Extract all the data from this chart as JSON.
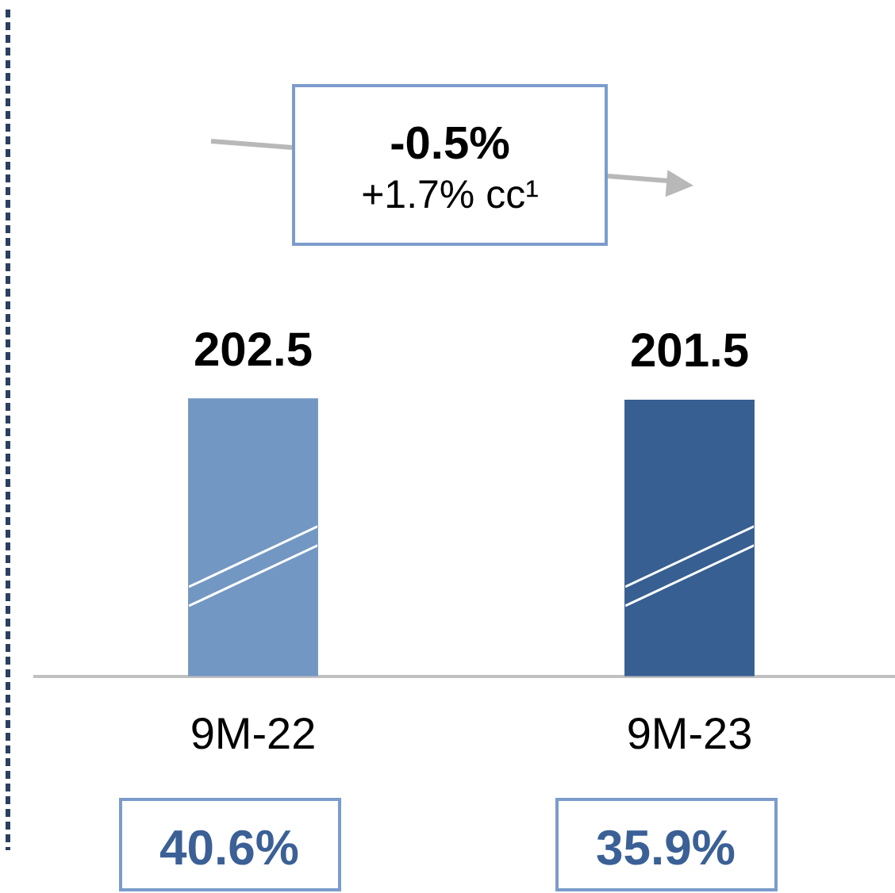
{
  "chart_data": {
    "type": "bar",
    "categories": [
      "9M-22",
      "9M-23"
    ],
    "values": [
      202.5,
      201.5
    ],
    "colors": [
      "#7397c3",
      "#375f91"
    ],
    "data_labels": true,
    "legend": false,
    "grid": false,
    "tick_labels": "x",
    "annotations": [
      "-0.5%\n+1.7% cc¹",
      "40.6%",
      "35.9%"
    ]
  }
}
